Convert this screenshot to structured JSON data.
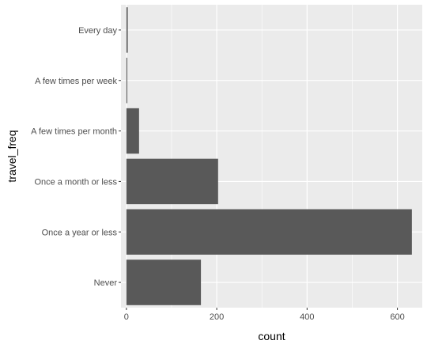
{
  "chart_data": {
    "type": "bar",
    "orientation": "horizontal",
    "categories": [
      "Every day",
      "A few times per week",
      "A few times per month",
      "Once a month or less",
      "Once a year or less",
      "Never"
    ],
    "values": [
      3,
      2,
      28,
      203,
      632,
      165
    ],
    "xlabel": "count",
    "ylabel": "travel_freq",
    "xlim": [
      -12,
      655
    ],
    "xticks": [
      0,
      200,
      400,
      600
    ],
    "grid": true,
    "colors": {
      "panel": "#ebebeb",
      "bar": "#595959",
      "grid_major": "#ffffff",
      "axis_text": "#4d4d4d",
      "tick": "#333333"
    }
  }
}
